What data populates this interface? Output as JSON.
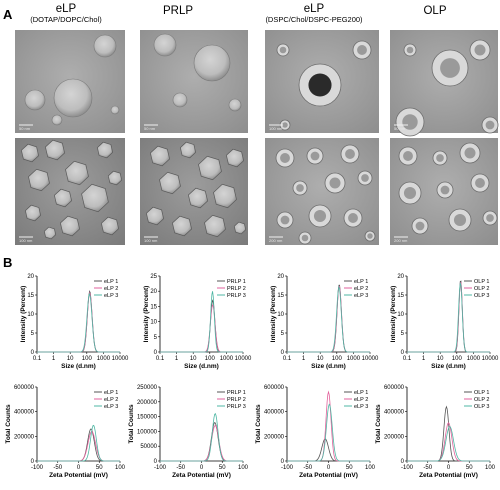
{
  "panel_labels": {
    "a": "A",
    "b": "B"
  },
  "columns": [
    {
      "title": "eLP",
      "subtitle": "(DOTAP/DOPC/Chol)"
    },
    {
      "title": "PRLP",
      "subtitle": ""
    },
    {
      "title": "eLP",
      "subtitle": "(DSPC/Chol/DSPC-PEG200)"
    },
    {
      "title": "OLP",
      "subtitle": ""
    }
  ],
  "micrographs": [
    {
      "column": 0,
      "row": 0,
      "morphology": "sparse spherical vesicles",
      "scale_bar": "50 nm"
    },
    {
      "column": 0,
      "row": 1,
      "morphology": "dense polygonal vesicles",
      "scale_bar": "100 nm"
    },
    {
      "column": 1,
      "row": 0,
      "morphology": "sparse spherical vesicles",
      "scale_bar": "50 nm"
    },
    {
      "column": 1,
      "row": 1,
      "morphology": "dense polygonal vesicles",
      "scale_bar": "100 nm"
    },
    {
      "column": 2,
      "row": 0,
      "morphology": "ring-shaped vesicles with dark core",
      "scale_bar": "100 nm"
    },
    {
      "column": 2,
      "row": 1,
      "morphology": "ring-shaped vesicles",
      "scale_bar": "200 nm"
    },
    {
      "column": 3,
      "row": 0,
      "morphology": "large ring-shaped vesicles",
      "scale_bar": "50 nm"
    },
    {
      "column": 3,
      "row": 1,
      "morphology": "ring-shaped vesicles",
      "scale_bar": "200 nm"
    }
  ],
  "colors": {
    "series1": "#555555",
    "series2": "#e2629c",
    "series3": "#4fb7a4"
  },
  "chart_data": [
    {
      "type": "line",
      "row": "size",
      "column": 0,
      "xlabel": "Size (d.nm)",
      "ylabel": "Intensity (Percent)",
      "x_scale": "log",
      "xlim": [
        0.1,
        10000
      ],
      "ylim": [
        0,
        20
      ],
      "xticks": [
        "0.1",
        "1",
        "10",
        "100",
        "1000",
        "10000"
      ],
      "yticks": [
        "0",
        "5",
        "10",
        "15",
        "20"
      ],
      "legend_position": "top-right",
      "series": [
        {
          "name": "eLP 1",
          "peak_x": 150,
          "peak_y": 16,
          "width": 0.14
        },
        {
          "name": "eLP 2",
          "peak_x": 150,
          "peak_y": 15.6,
          "width": 0.145
        },
        {
          "name": "eLP 3",
          "peak_x": 145,
          "peak_y": 15.3,
          "width": 0.15
        }
      ]
    },
    {
      "type": "line",
      "row": "size",
      "column": 1,
      "xlabel": "Size (d.nm)",
      "ylabel": "Intensity (Percent)",
      "x_scale": "log",
      "xlim": [
        0.1,
        10000
      ],
      "ylim": [
        0,
        25
      ],
      "xticks": [
        "0.1",
        "1",
        "10",
        "100",
        "1000",
        "10000"
      ],
      "yticks": [
        "0",
        "5",
        "10",
        "15",
        "20",
        "25"
      ],
      "legend_position": "top-right",
      "series": [
        {
          "name": "PRLP 1",
          "peak_x": 150,
          "peak_y": 17,
          "width": 0.13
        },
        {
          "name": "PRLP 2",
          "peak_x": 150,
          "peak_y": 15.5,
          "width": 0.14
        },
        {
          "name": "PRLP 3",
          "peak_x": 145,
          "peak_y": 20,
          "width": 0.11
        }
      ]
    },
    {
      "type": "line",
      "row": "size",
      "column": 2,
      "xlabel": "Size (d.nm)",
      "ylabel": "Intensity (Percent)",
      "x_scale": "log",
      "xlim": [
        0.1,
        10000
      ],
      "ylim": [
        0,
        20
      ],
      "xticks": [
        "0.1",
        "1",
        "10",
        "100",
        "1000",
        "10000"
      ],
      "yticks": [
        "0",
        "5",
        "10",
        "15",
        "20"
      ],
      "legend_position": "top-right",
      "series": [
        {
          "name": "eLP 1",
          "peak_x": 140,
          "peak_y": 17.8,
          "width": 0.13
        },
        {
          "name": "eLP 2",
          "peak_x": 140,
          "peak_y": 17.5,
          "width": 0.135
        },
        {
          "name": "eLP 3",
          "peak_x": 135,
          "peak_y": 17.2,
          "width": 0.14
        }
      ]
    },
    {
      "type": "line",
      "row": "size",
      "column": 3,
      "xlabel": "Size (d.nm)",
      "ylabel": "Intensity (Percent)",
      "x_scale": "log",
      "xlim": [
        0.1,
        10000
      ],
      "ylim": [
        0,
        20
      ],
      "xticks": [
        "0.1",
        "1",
        "10",
        "100",
        "1000",
        "10000"
      ],
      "yticks": [
        "0",
        "5",
        "10",
        "15",
        "20"
      ],
      "legend_position": "top-right",
      "series": [
        {
          "name": "OLP 1",
          "peak_x": 170,
          "peak_y": 19,
          "width": 0.1
        },
        {
          "name": "OLP 2",
          "peak_x": 170,
          "peak_y": 18.6,
          "width": 0.105
        },
        {
          "name": "OLP 3",
          "peak_x": 165,
          "peak_y": 18.3,
          "width": 0.11
        }
      ]
    },
    {
      "type": "line",
      "row": "zeta",
      "column": 0,
      "xlabel": "Zeta Potential (mV)",
      "ylabel": "Total Counts",
      "x_scale": "linear",
      "xlim": [
        -100,
        100
      ],
      "ylim": [
        0,
        600000
      ],
      "xticks": [
        "-100",
        "-50",
        "0",
        "50",
        "100"
      ],
      "yticks": [
        "0",
        "200000",
        "400000",
        "600000"
      ],
      "legend_position": "top-right",
      "series": [
        {
          "name": "eLP 1",
          "peak_x": 30,
          "peak_y": 260000,
          "width": 8
        },
        {
          "name": "eLP 2",
          "peak_x": 32,
          "peak_y": 240000,
          "width": 9
        },
        {
          "name": "eLP 3",
          "peak_x": 36,
          "peak_y": 290000,
          "width": 7
        }
      ]
    },
    {
      "type": "line",
      "row": "zeta",
      "column": 1,
      "xlabel": "Zeta Potential (mV)",
      "ylabel": "Total Counts",
      "x_scale": "linear",
      "xlim": [
        -100,
        100
      ],
      "ylim": [
        0,
        250000
      ],
      "xticks": [
        "-100",
        "-50",
        "0",
        "50",
        "100"
      ],
      "yticks": [
        "0",
        "50000",
        "100000",
        "150000",
        "200000",
        "250000"
      ],
      "legend_position": "top-right",
      "series": [
        {
          "name": "PRLP 1",
          "peak_x": 32,
          "peak_y": 130000,
          "width": 8
        },
        {
          "name": "PRLP 2",
          "peak_x": 33,
          "peak_y": 120000,
          "width": 8.5
        },
        {
          "name": "PRLP 3",
          "peak_x": 33,
          "peak_y": 160000,
          "width": 7
        }
      ]
    },
    {
      "type": "line",
      "row": "zeta",
      "column": 2,
      "xlabel": "Zeta Potential (mV)",
      "ylabel": "Total Counts",
      "x_scale": "linear",
      "xlim": [
        -100,
        100
      ],
      "ylim": [
        0,
        600000
      ],
      "xticks": [
        "-100",
        "-50",
        "0",
        "50",
        "100"
      ],
      "yticks": [
        "0",
        "200000",
        "400000",
        "600000"
      ],
      "legend_position": "top-right",
      "series": [
        {
          "name": "eLP 1",
          "peak_x": -8,
          "peak_y": 180000,
          "width": 8
        },
        {
          "name": "eLP 2",
          "peak_x": 0,
          "peak_y": 560000,
          "width": 6
        },
        {
          "name": "eLP 3",
          "peak_x": 2,
          "peak_y": 460000,
          "width": 7
        }
      ]
    },
    {
      "type": "line",
      "row": "zeta",
      "column": 3,
      "xlabel": "Zeta Potential (mV)",
      "ylabel": "Total Counts",
      "x_scale": "linear",
      "xlim": [
        -100,
        100
      ],
      "ylim": [
        0,
        600000
      ],
      "xticks": [
        "-100",
        "-50",
        "0",
        "50",
        "100"
      ],
      "yticks": [
        "0",
        "200000",
        "400000",
        "600000"
      ],
      "legend_position": "top-right",
      "series": [
        {
          "name": "OLP 1",
          "peak_x": -5,
          "peak_y": 440000,
          "width": 6
        },
        {
          "name": "OLP 2",
          "peak_x": 0,
          "peak_y": 310000,
          "width": 8
        },
        {
          "name": "OLP 3",
          "peak_x": 3,
          "peak_y": 280000,
          "width": 9
        }
      ]
    }
  ]
}
